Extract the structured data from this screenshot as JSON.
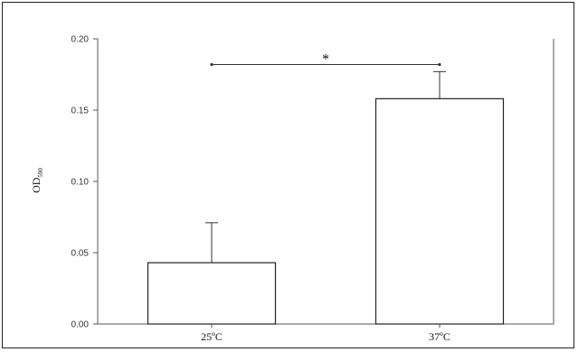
{
  "chart_data": {
    "type": "bar",
    "categories": [
      "25ºC",
      "37ºC"
    ],
    "values": [
      0.043,
      0.158
    ],
    "errors": [
      0.028,
      0.019
    ],
    "ylabel": "OD",
    "ylabel_subscript": "590",
    "ylim": [
      0,
      0.2
    ],
    "yticks": [
      "0.00",
      "0.05",
      "0.10",
      "0.15",
      "0.20"
    ],
    "grid": false,
    "significance": {
      "label": "*",
      "between": [
        0,
        1
      ],
      "y": 0.182
    }
  }
}
